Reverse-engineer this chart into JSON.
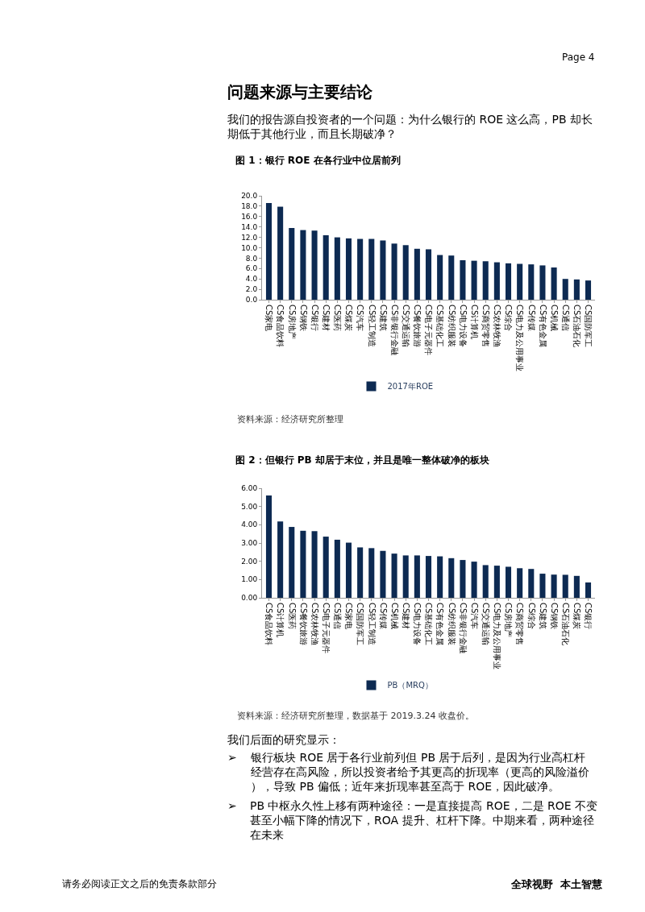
{
  "chart_data": [
    {
      "type": "other",
      "title": "问题来源与主要结论",
      "annotations": [
        "Page 4",
        "我们的报告源自投资者的一个问题：为什么银行的 ROE 这么高，PB 却长期低于其他行业，而且长期破净？"
      ]
    },
    {
      "type": "bar",
      "title": "图 1：银行 ROE 在各行业中位居前列",
      "categories": [
        "CS家电",
        "CS食品饮料",
        "CS房地产",
        "CS钢铁",
        "CS银行",
        "CS建材",
        "CS医药",
        "CS煤炭",
        "CS汽车",
        "CS轻工制造",
        "CS建筑",
        "CS非银行金融",
        "CS交通运输",
        "CS餐饮旅游",
        "CS电子元器件",
        "CS基础化工",
        "CS纺织服装",
        "CS电力设备",
        "CS计算机",
        "CS商贸零售",
        "CS农林牧渔",
        "CS综合",
        "CS电力及公用事业",
        "CS传媒",
        "CS有色金属",
        "CS机械",
        "CS通信",
        "CS石油石化",
        "CS国防军工"
      ],
      "series": [
        {
          "name": "2017年ROE",
          "color": "#0d2a52",
          "values": [
            18.6,
            17.9,
            13.8,
            13.4,
            13.3,
            12.4,
            12.0,
            11.8,
            11.7,
            11.7,
            11.4,
            10.8,
            10.5,
            9.8,
            9.7,
            8.6,
            8.5,
            7.6,
            7.5,
            7.4,
            7.2,
            7.0,
            6.9,
            6.8,
            6.6,
            6.2,
            4.0,
            3.9,
            3.7
          ]
        }
      ],
      "ylim": [
        0,
        20
      ],
      "yticks": [
        {
          "value": 0,
          "label": "0.0"
        },
        {
          "value": 2,
          "label": "2.0"
        },
        {
          "value": 4,
          "label": "4.0"
        },
        {
          "value": 6,
          "label": "6.0"
        },
        {
          "value": 8,
          "label": "8.0"
        },
        {
          "value": 10,
          "label": "10.0"
        },
        {
          "value": 12,
          "label": "12.0"
        },
        {
          "value": 14,
          "label": "14.0"
        },
        {
          "value": 16,
          "label": "16.0"
        },
        {
          "value": 18,
          "label": "18.0"
        },
        {
          "value": 20,
          "label": "20.0"
        }
      ],
      "legend": "bottom",
      "annotations": [
        "资料来源：经济研究所整理"
      ]
    },
    {
      "type": "bar",
      "title": "图 2：但银行 PB 却居于末位，并且是唯一整体破净的板块",
      "categories": [
        "CS食品饮料",
        "CS计算机",
        "CS医药",
        "CS餐饮旅游",
        "CS农林牧渔",
        "CS电子元器件",
        "CS通信",
        "CS家电",
        "CS国防军工",
        "CS轻工制造",
        "CS传媒",
        "CS机械",
        "CS建材",
        "CS电力设备",
        "CS基础化工",
        "CS有色金属",
        "CS纺织服装",
        "CS非银行金融",
        "CS汽车",
        "CS交通运输",
        "CS电力及公用事业",
        "CS房地产",
        "CS商贸零售",
        "CS综合",
        "CS建筑",
        "CS钢铁",
        "CS石油石化",
        "CS煤炭",
        "CS银行"
      ],
      "series": [
        {
          "name": "PB（MRQ）",
          "color": "#0d2a52",
          "values": [
            5.6,
            4.18,
            3.88,
            3.67,
            3.65,
            3.35,
            3.18,
            3.02,
            2.76,
            2.72,
            2.57,
            2.42,
            2.32,
            2.32,
            2.29,
            2.27,
            2.17,
            2.07,
            1.98,
            1.79,
            1.76,
            1.7,
            1.62,
            1.58,
            1.32,
            1.27,
            1.26,
            1.2,
            0.84
          ]
        }
      ],
      "ylim": [
        0,
        6
      ],
      "yticks": [
        {
          "value": 0,
          "label": "0.00"
        },
        {
          "value": 1,
          "label": "1.00"
        },
        {
          "value": 2,
          "label": "2.00"
        },
        {
          "value": 3,
          "label": "3.00"
        },
        {
          "value": 4,
          "label": "4.00"
        },
        {
          "value": 5,
          "label": "5.00"
        },
        {
          "value": 6,
          "label": "6.00"
        }
      ],
      "legend": "bottom",
      "annotations": [
        "资料来源：经济研究所整理，数据基于 2019.3.24 收盘价。"
      ]
    },
    {
      "type": "other",
      "title": "我们后面的研究显示：",
      "annotations": [
        "➢ 银行板块 ROE 居于各行业前列但 PB 居于后列，是因为行业高杠杆经营存在高风险，所以投资者给予其更高的折现率（更高的风险溢价），导致 PB 偏低；近年来折现率甚至高于 ROE，因此破净。",
        "➢ PB 中枢永久性上移有两种途径：一是直接提高 ROE，二是 ROE 不变甚至小幅下降的情况下，ROA 提升、杠杆下降。中期来看，两种途径在未来",
        "请务必阅读正文之后的免责条款部分",
        "全球视野  本土智慧"
      ]
    }
  ]
}
